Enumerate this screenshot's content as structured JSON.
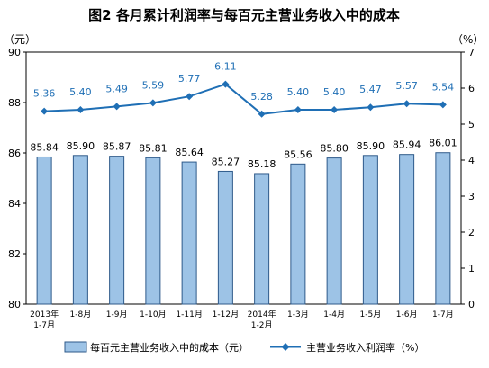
{
  "chart_data": {
    "type": "bar",
    "title": "图2  各月累计利润率与每百元主营业务收入中的成本",
    "left_axis": {
      "unit": "（元）",
      "ylim": [
        80,
        90
      ],
      "ticks": [
        "80",
        "82",
        "84",
        "86",
        "88",
        "90"
      ]
    },
    "right_axis": {
      "unit": "（%）",
      "ylim": [
        0,
        7
      ],
      "ticks": [
        "0",
        "1",
        "2",
        "3",
        "4",
        "5",
        "6",
        "7"
      ]
    },
    "categories": [
      [
        "2013年",
        "1-7月"
      ],
      [
        "1-8月"
      ],
      [
        "1-9月"
      ],
      [
        "1-10月"
      ],
      [
        "1-11月"
      ],
      [
        "1-12月"
      ],
      [
        "2014年",
        "1-2月"
      ],
      [
        "1-3月"
      ],
      [
        "1-4月"
      ],
      [
        "1-5月"
      ],
      [
        "1-6月"
      ],
      [
        "1-7月"
      ]
    ],
    "series": [
      {
        "name": "每百元主营业务收入中的成本（元）",
        "type": "bar",
        "axis": "left",
        "color": "#9dc3e6",
        "values": [
          85.84,
          85.9,
          85.87,
          85.81,
          85.64,
          85.27,
          85.18,
          85.56,
          85.8,
          85.9,
          85.94,
          86.01
        ],
        "labels": [
          "85.84",
          "85.90",
          "85.87",
          "85.81",
          "85.64",
          "85.27",
          "85.18",
          "85.56",
          "85.80",
          "85.90",
          "85.94",
          "86.01"
        ]
      },
      {
        "name": "主营业务收入利润率（%）",
        "type": "line",
        "axis": "right",
        "color": "#1f6fb5",
        "marker": "diamond",
        "values": [
          5.36,
          5.4,
          5.49,
          5.59,
          5.77,
          6.11,
          5.28,
          5.4,
          5.4,
          5.47,
          5.57,
          5.54
        ],
        "labels": [
          "5.36",
          "5.40",
          "5.49",
          "5.59",
          "5.77",
          "6.11",
          "5.28",
          "5.40",
          "5.40",
          "5.47",
          "5.57",
          "5.54"
        ]
      }
    ],
    "grid": false,
    "legend_position": "bottom"
  }
}
